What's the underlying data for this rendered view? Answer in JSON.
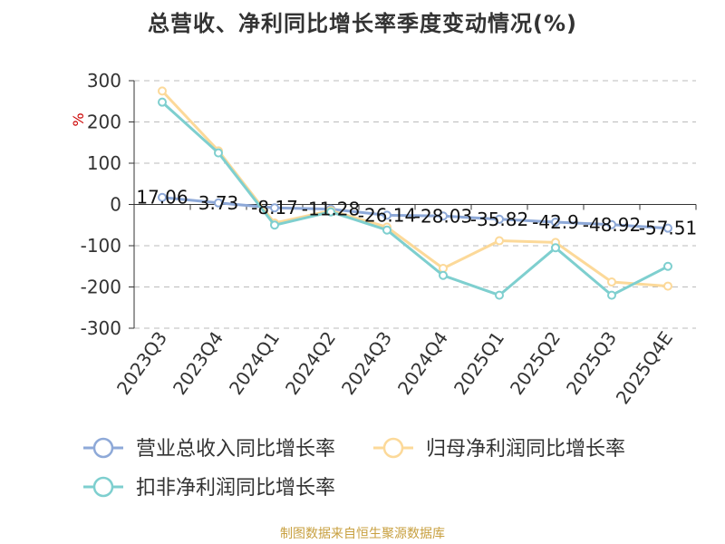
{
  "chart_data": {
    "type": "line",
    "title": "总营收、净利同比增长率季度变动情况(%)",
    "ylabel": "%",
    "ylim": [
      -300,
      300
    ],
    "yticks": [
      300,
      200,
      100,
      0,
      -100,
      -200,
      -300
    ],
    "categories": [
      "2023Q3",
      "2023Q4",
      "2024Q1",
      "2024Q2",
      "2024Q3",
      "2024Q4",
      "2025Q1",
      "2025Q2",
      "2025Q3",
      "2025Q4E"
    ],
    "series": [
      {
        "name": "营业总收入同比增长率",
        "color": "#8ea9d8",
        "values": [
          17.06,
          3.73,
          -8.17,
          -11.28,
          -26.14,
          -28.03,
          -35.82,
          -42.9,
          -48.92,
          -57.51
        ],
        "labels": [
          "17.06",
          "3.73",
          "-8.17",
          "-11.28",
          "-26.14",
          "-28.03",
          "-35.82",
          "-42.9",
          "-48.92",
          "-57.51"
        ]
      },
      {
        "name": "归母净利润同比增长率",
        "color": "#fcd999",
        "values": [
          275,
          130,
          -45,
          -15,
          -55,
          -155,
          -88,
          -92,
          -188,
          -198
        ]
      },
      {
        "name": "扣非净利润同比增长率",
        "color": "#7ecfcf",
        "values": [
          248,
          125,
          -50,
          -18,
          -62,
          -172,
          -220,
          -105,
          -220,
          -150
        ]
      }
    ],
    "grid": true,
    "legend_position": "bottom"
  },
  "footer": "制图数据来自恒生聚源数据库"
}
